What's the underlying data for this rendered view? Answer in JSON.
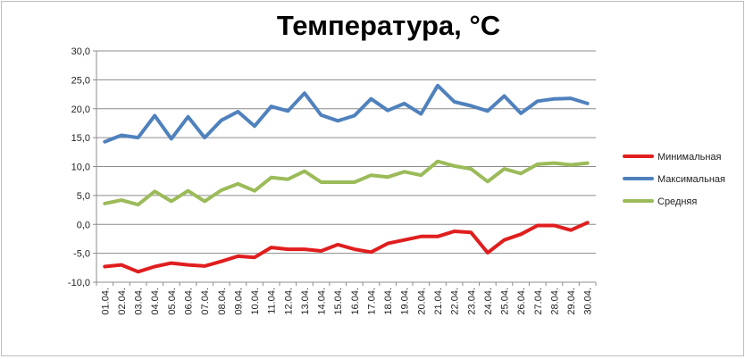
{
  "chart_data": {
    "type": "line",
    "title": "Температура, °C",
    "xlabel": "",
    "ylabel": "",
    "ylim": [
      -10,
      30
    ],
    "y_ticks": [
      "-10,0",
      "-5,0",
      "0,0",
      "5,0",
      "10,0",
      "15,0",
      "20,0",
      "25,0",
      "30,0"
    ],
    "y_tick_values": [
      -10,
      -5,
      0,
      5,
      10,
      15,
      20,
      25,
      30
    ],
    "grid": true,
    "legend_position": "right",
    "categories": [
      "01.04.",
      "02.04.",
      "03.04.",
      "04.04.",
      "05.04.",
      "06.04.",
      "07.04.",
      "08.04.",
      "09.04.",
      "10.04.",
      "11.04.",
      "12.04.",
      "13.04.",
      "14.04.",
      "15.04.",
      "16.04.",
      "17.04.",
      "18.04.",
      "19.04.",
      "20.04.",
      "21.04.",
      "22.04.",
      "23.04.",
      "24.04.",
      "25.04.",
      "26.04.",
      "27.04.",
      "28.04.",
      "29.04.",
      "30.04."
    ],
    "series": [
      {
        "name": "Минимальная",
        "color": "#e01e1e",
        "values": [
          -7.3,
          -7.0,
          -8.2,
          -7.3,
          -6.7,
          -7.0,
          -7.2,
          -6.4,
          -5.5,
          -5.7,
          -4.0,
          -4.3,
          -4.3,
          -4.6,
          -3.5,
          -4.3,
          -4.8,
          -3.3,
          -2.7,
          -2.1,
          -2.1,
          -1.2,
          -1.4,
          -4.9,
          -2.7,
          -1.7,
          -0.2,
          -0.2,
          -1.0,
          0.3
        ]
      },
      {
        "name": "Максимальная",
        "color": "#4f81bd",
        "values": [
          14.3,
          15.4,
          15.0,
          18.8,
          14.8,
          18.6,
          15.0,
          18.0,
          19.5,
          17.0,
          20.4,
          19.6,
          22.7,
          18.9,
          17.9,
          18.8,
          21.7,
          19.7,
          20.9,
          19.1,
          24.0,
          21.2,
          20.5,
          19.6,
          22.2,
          19.2,
          21.3,
          21.7,
          21.8,
          20.9
        ]
      },
      {
        "name": "Средняя",
        "color": "#9bbb59",
        "values": [
          3.6,
          4.2,
          3.4,
          5.7,
          4.0,
          5.8,
          4.0,
          5.9,
          7.0,
          5.8,
          8.1,
          7.8,
          9.2,
          7.3,
          7.3,
          7.3,
          8.5,
          8.2,
          9.1,
          8.5,
          10.9,
          10.1,
          9.6,
          7.4,
          9.6,
          8.8,
          10.4,
          10.6,
          10.3,
          10.6
        ]
      }
    ]
  }
}
